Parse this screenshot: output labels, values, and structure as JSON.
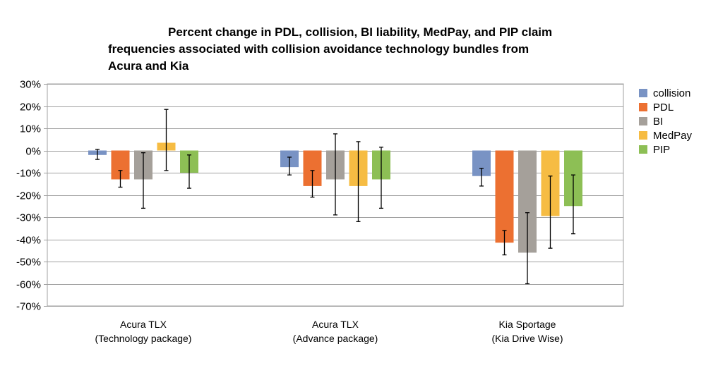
{
  "chart_data": {
    "type": "bar",
    "title_lines": [
      "Percent change in PDL, collision, BI liability, MedPay, and PIP claim",
      "frequencies associated with collision avoidance technology bundles from",
      "Acura and Kia"
    ],
    "xlabel": "",
    "ylabel": "",
    "ylim": [
      -70,
      30
    ],
    "yticks": [
      "30%",
      "20%",
      "10%",
      "0%",
      "-10%",
      "-20%",
      "-30%",
      "-40%",
      "-50%",
      "-60%",
      "-70%"
    ],
    "ytick_values": [
      30,
      20,
      10,
      0,
      -10,
      -20,
      -30,
      -40,
      -50,
      -60,
      -70
    ],
    "grid": true,
    "legend_position": "right",
    "categories": [
      [
        "Acura TLX",
        "(Technology package)"
      ],
      [
        "Acura TLX",
        "(Advance package)"
      ],
      [
        "Kia Sportage",
        "(Kia Drive Wise)"
      ]
    ],
    "series": [
      {
        "name": "collision",
        "color": "#7993c4",
        "values": [
          -2,
          -7.5,
          -11.5
        ],
        "err_low": [
          -4,
          -11,
          -16
        ],
        "err_high": [
          0.5,
          -3,
          -8
        ]
      },
      {
        "name": "PDL",
        "color": "#ec7031",
        "values": [
          -13,
          -16,
          -41.5
        ],
        "err_low": [
          -16.5,
          -21,
          -47
        ],
        "err_high": [
          -9,
          -9,
          -36
        ]
      },
      {
        "name": "BI",
        "color": "#a5a09a",
        "values": [
          -13,
          -13,
          -46
        ],
        "err_low": [
          -26,
          -29,
          -60
        ],
        "err_high": [
          -1,
          7.5,
          -28
        ]
      },
      {
        "name": "MedPay",
        "color": "#f6bc43",
        "values": [
          3.5,
          -16,
          -29.5
        ],
        "err_low": [
          -9,
          -32,
          -44
        ],
        "err_high": [
          18.5,
          4,
          -11.5
        ]
      },
      {
        "name": "PIP",
        "color": "#8dbf55",
        "values": [
          -10,
          -13,
          -25
        ],
        "err_low": [
          -17,
          -26,
          -37.5
        ],
        "err_high": [
          -2,
          1.5,
          -11
        ]
      }
    ]
  }
}
